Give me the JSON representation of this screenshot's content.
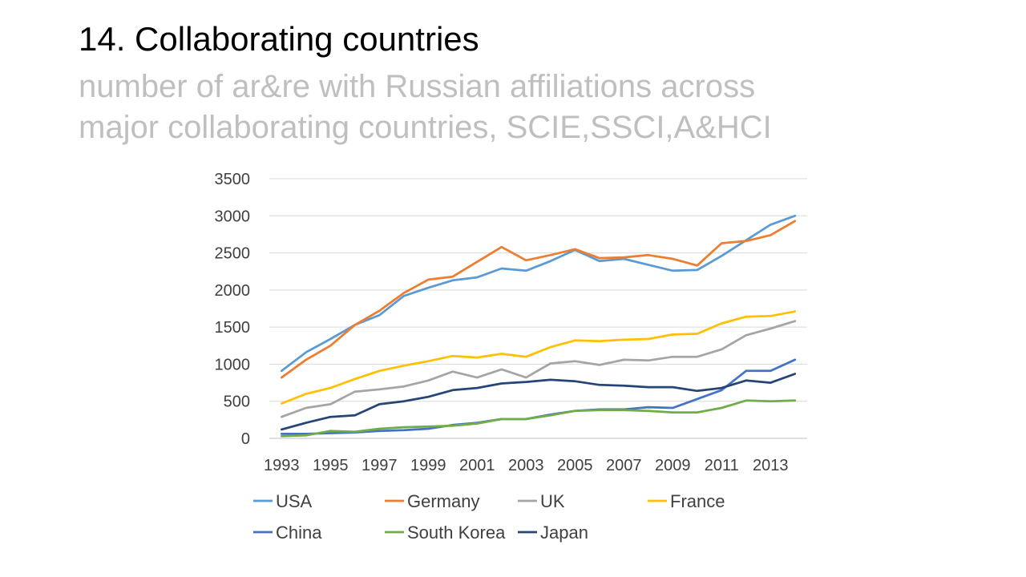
{
  "slide": {
    "title": "14. Collaborating countries",
    "subtitle_line1": "number of ar&re with Russian affiliations across",
    "subtitle_line2": "major collaborating countries, SCIE,SSCI,A&HCI"
  },
  "chart_data": {
    "type": "line",
    "x": [
      1993,
      1994,
      1995,
      1996,
      1997,
      1998,
      1999,
      2000,
      2001,
      2002,
      2003,
      2004,
      2005,
      2006,
      2007,
      2008,
      2009,
      2010,
      2011,
      2012,
      2013,
      2014
    ],
    "x_tick_labels": [
      "1993",
      "1995",
      "1997",
      "1999",
      "2001",
      "2003",
      "2005",
      "2007",
      "2009",
      "2011",
      "2013"
    ],
    "y_tick_labels": [
      "0",
      "500",
      "1000",
      "1500",
      "2000",
      "2500",
      "3000",
      "3500"
    ],
    "ylim": [
      0,
      3500
    ],
    "grid": "horizontal",
    "legend_position": "bottom",
    "series": [
      {
        "name": "USA",
        "color": "#5b9bd5",
        "values": [
          910,
          1160,
          1340,
          1530,
          1660,
          1920,
          2030,
          2130,
          2170,
          2290,
          2260,
          2390,
          2540,
          2390,
          2420,
          2340,
          2260,
          2270,
          2460,
          2670,
          2880,
          3000
        ]
      },
      {
        "name": "Germany",
        "color": "#ed7d31",
        "values": [
          820,
          1060,
          1250,
          1530,
          1720,
          1960,
          2140,
          2180,
          2380,
          2580,
          2400,
          2470,
          2550,
          2430,
          2440,
          2470,
          2420,
          2330,
          2630,
          2660,
          2740,
          2930
        ]
      },
      {
        "name": "UK",
        "color": "#a5a5a5",
        "values": [
          290,
          410,
          460,
          630,
          660,
          700,
          780,
          900,
          820,
          930,
          820,
          1010,
          1040,
          990,
          1060,
          1050,
          1100,
          1100,
          1200,
          1390,
          1480,
          1580
        ]
      },
      {
        "name": "France",
        "color": "#ffc000",
        "values": [
          470,
          600,
          680,
          800,
          910,
          980,
          1040,
          1110,
          1090,
          1140,
          1100,
          1230,
          1320,
          1310,
          1330,
          1340,
          1400,
          1410,
          1550,
          1640,
          1650,
          1710
        ]
      },
      {
        "name": "China",
        "color": "#4472c4",
        "values": [
          60,
          60,
          70,
          80,
          100,
          110,
          130,
          180,
          210,
          260,
          260,
          320,
          370,
          390,
          390,
          420,
          410,
          530,
          650,
          910,
          910,
          1060
        ]
      },
      {
        "name": "South Korea",
        "color": "#70ad47",
        "values": [
          30,
          40,
          100,
          90,
          130,
          150,
          160,
          170,
          200,
          260,
          260,
          310,
          370,
          380,
          380,
          370,
          350,
          350,
          410,
          510,
          500,
          510
        ]
      },
      {
        "name": "Japan",
        "color": "#264478",
        "values": [
          120,
          210,
          290,
          310,
          460,
          500,
          560,
          650,
          680,
          740,
          760,
          790,
          770,
          720,
          710,
          690,
          690,
          640,
          680,
          780,
          750,
          870
        ]
      }
    ]
  }
}
